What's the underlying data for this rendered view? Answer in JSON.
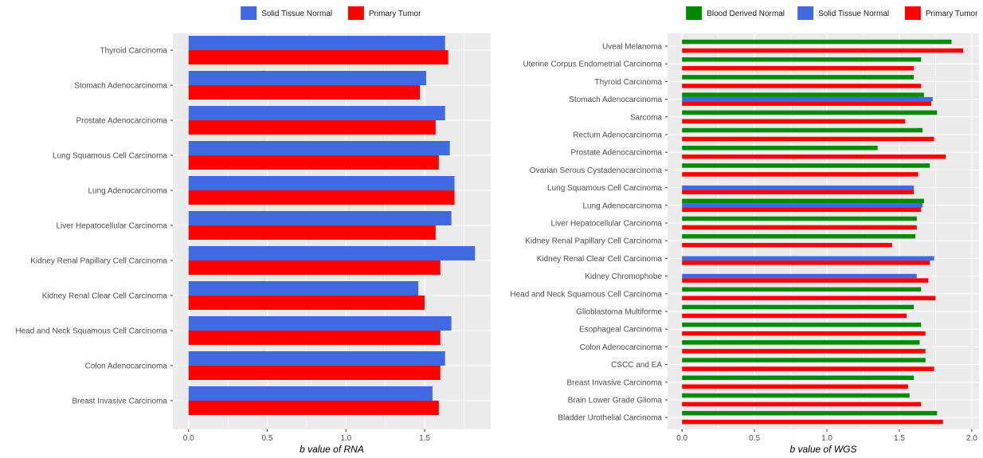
{
  "chart_data": [
    {
      "type": "bar",
      "orientation": "horizontal",
      "xlabel": "b value of RNA",
      "xlim": [
        -0.1,
        1.92
      ],
      "xticks": [
        "0.0",
        "0.5",
        "1.0",
        "1.5"
      ],
      "xtick_values": [
        0,
        0.5,
        1.0,
        1.5
      ],
      "grid": true,
      "legend_position": "top",
      "categories": [
        "Thyroid Carcinoma",
        "Stomach Adenocarcinoma",
        "Prostate Adenocarcinoma",
        "Lung Squamous Cell Carcinoma",
        "Lung Adenocarcinoma",
        "Liver Hepatocellular Carcinoma",
        "Kidney Renal Papillary Cell Carcinoma",
        "Kidney Renal Clear Cell Carcinoma",
        "Head and Neck Squamous Cell Carcinoma",
        "Colon Adenocarcinoma",
        "Breast Invasive Carcinoma"
      ],
      "series": [
        {
          "name": "Solid Tissue Normal",
          "color": "#4169E1",
          "values": [
            1.63,
            1.51,
            1.63,
            1.66,
            1.69,
            1.67,
            1.82,
            1.46,
            1.67,
            1.63,
            1.55
          ]
        },
        {
          "name": "Primary Tumor",
          "color": "#FF0000",
          "values": [
            1.65,
            1.47,
            1.57,
            1.59,
            1.69,
            1.57,
            1.6,
            1.5,
            1.6,
            1.6,
            1.59
          ]
        }
      ]
    },
    {
      "type": "bar",
      "orientation": "horizontal",
      "xlabel": "b value of WGS",
      "xlim": [
        -0.1,
        2.05
      ],
      "xticks": [
        "0.0",
        "0.5",
        "1.0",
        "1.5",
        "2.0"
      ],
      "xtick_values": [
        0,
        0.5,
        1.0,
        1.5,
        2.0
      ],
      "grid": true,
      "legend_position": "top",
      "categories": [
        "Uveal Melanoma",
        "Uterine Corpus Endometrial Carcinoma",
        "Thyroid Carcinoma",
        "Stomach Adenocarcinoma",
        "Sarcoma",
        "Rectum Adenocarcinoma",
        "Prostate Adenocarcinoma",
        "Ovarian Serous Cystadenocarcinoma",
        "Lung Squamous Cell Carcinoma",
        "Lung Adenocarcinoma",
        "Liver Hepatocellular Carcinoma",
        "Kidney Renal Papillary Cell Carcinoma",
        "Kidney Renal Clear Cell Carcinoma",
        "Kidney Chromophobe",
        "Head and Neck Squamous Cell Carcinoma",
        "Glioblastoma Multiforme",
        "Esophageal Carcinoma",
        "Colon Adenocarcinoma",
        "CSCC and EA",
        "Breast Invasive Carcinoma",
        "Brain Lower Grade Glioma",
        "Bladder Urothelial Carcinoma"
      ],
      "series": [
        {
          "name": "Blood Derived Normal",
          "color": "#008B00",
          "values": [
            1.86,
            1.65,
            1.6,
            1.67,
            1.76,
            1.66,
            1.35,
            1.71,
            null,
            1.67,
            1.62,
            1.61,
            null,
            null,
            1.65,
            1.6,
            1.65,
            1.64,
            1.68,
            1.6,
            1.57,
            1.76
          ]
        },
        {
          "name": "Solid Tissue Normal",
          "color": "#4169E1",
          "values": [
            null,
            null,
            null,
            1.73,
            null,
            null,
            null,
            null,
            1.6,
            1.66,
            null,
            null,
            1.74,
            1.62,
            null,
            null,
            null,
            null,
            null,
            null,
            null,
            null
          ]
        },
        {
          "name": "Primary Tumor",
          "color": "#FF0000",
          "values": [
            1.94,
            1.6,
            1.65,
            1.72,
            1.54,
            1.74,
            1.82,
            1.63,
            1.6,
            1.65,
            1.62,
            1.45,
            1.71,
            1.7,
            1.75,
            1.55,
            1.68,
            1.68,
            1.74,
            1.56,
            1.65,
            1.8
          ]
        }
      ]
    }
  ]
}
